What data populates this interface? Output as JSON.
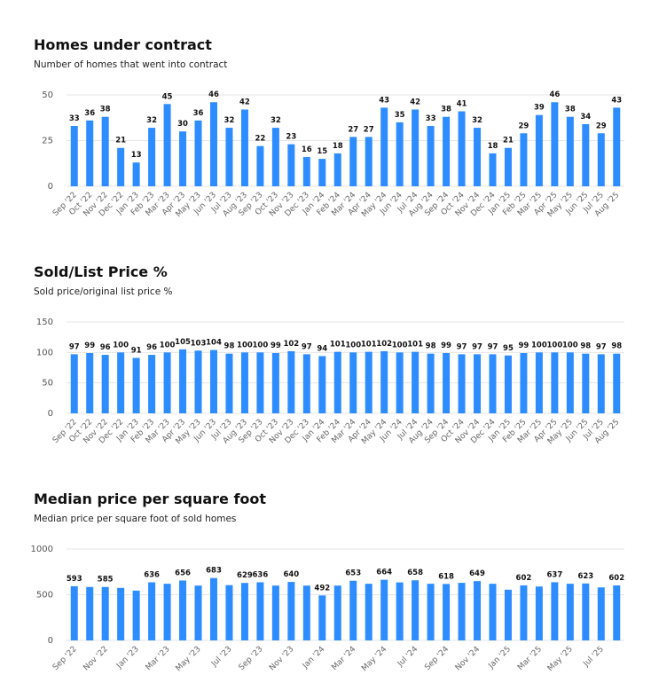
{
  "chart_data": [
    {
      "type": "bar",
      "title": "Homes under contract",
      "subtitle": "Number of homes that went into contract",
      "categories": [
        "Sep '22",
        "Oct '22",
        "Nov '22",
        "Dec '22",
        "Jan '23",
        "Feb '23",
        "Mar '23",
        "Apr '23",
        "May '23",
        "Jun '23",
        "Jul '23",
        "Aug '23",
        "Sep '23",
        "Oct '23",
        "Nov '23",
        "Dec '23",
        "Jan '24",
        "Feb '24",
        "Mar '24",
        "Apr '24",
        "May '24",
        "Jun '24",
        "Jul '24",
        "Aug '24",
        "Sep '24",
        "Oct '24",
        "Nov '24",
        "Dec '24",
        "Jan '25",
        "Feb '25",
        "Mar '25",
        "Apr '25",
        "May '25",
        "Jun '25",
        "Jul '25",
        "Aug '25"
      ],
      "values": [
        33,
        36,
        38,
        21,
        13,
        32,
        45,
        30,
        36,
        46,
        32,
        42,
        22,
        32,
        23,
        16,
        15,
        18,
        27,
        27,
        43,
        35,
        42,
        33,
        38,
        41,
        32,
        18,
        21,
        29,
        39,
        46,
        38,
        34,
        29,
        43
      ],
      "color": "#2d8cff",
      "ylim": [
        0,
        50
      ],
      "yticks": [
        0,
        25,
        50
      ],
      "grid": true
    },
    {
      "type": "bar",
      "title": "Sold/List Price %",
      "subtitle": "Sold price/original list price %",
      "categories": [
        "Sep '22",
        "Oct '22",
        "Nov '22",
        "Dec '22",
        "Jan '23",
        "Feb '23",
        "Mar '23",
        "Apr '23",
        "May '23",
        "Jun '23",
        "Jul '23",
        "Aug '23",
        "Sep '23",
        "Oct '23",
        "Nov '23",
        "Dec '23",
        "Jan '24",
        "Feb '24",
        "Mar '24",
        "Apr '24",
        "May '24",
        "Jun '24",
        "Jul '24",
        "Aug '24",
        "Sep '24",
        "Oct '24",
        "Nov '24",
        "Dec '24",
        "Jan '25",
        "Feb '25",
        "Mar '25",
        "Apr '25",
        "May '25",
        "Jun '25",
        "Jul '25",
        "Aug '25"
      ],
      "values": [
        97,
        99,
        96,
        100,
        91,
        96,
        100,
        105,
        103,
        104,
        98,
        100,
        100,
        99,
        102,
        97,
        94,
        101,
        100,
        101,
        102,
        100,
        101,
        98,
        99,
        97,
        97,
        97,
        95,
        99,
        100,
        100,
        100,
        98,
        97,
        98
      ],
      "color": "#2d8cff",
      "ylim": [
        0,
        150
      ],
      "yticks": [
        0,
        50,
        100,
        150
      ],
      "grid": true
    },
    {
      "type": "bar",
      "title": "Median price per square foot",
      "subtitle": "Median price per square foot of sold homes",
      "categories": [
        "Sep '22",
        null,
        "Nov '22",
        null,
        "Jan '23",
        null,
        "Mar '23",
        null,
        "May '23",
        null,
        "Jul '23",
        null,
        "Sep '23",
        null,
        "Nov '23",
        null,
        "Jan '24",
        null,
        "Mar '24",
        null,
        "May '24",
        null,
        "Jul '24",
        null,
        "Sep '24",
        null,
        "Nov '24",
        null,
        "Jan '25",
        null,
        "Mar '25",
        null,
        "May '25",
        null,
        "Jul '25",
        null
      ],
      "values": [
        593,
        585,
        585,
        575,
        545,
        636,
        620,
        656,
        600,
        683,
        605,
        629,
        636,
        600,
        640,
        600,
        492,
        600,
        653,
        620,
        664,
        635,
        658,
        620,
        618,
        630,
        649,
        620,
        555,
        602,
        590,
        637,
        620,
        623,
        580,
        602
      ],
      "value_labels": [
        "593",
        null,
        "585",
        null,
        null,
        "636",
        null,
        "656",
        null,
        "683",
        null,
        "629",
        "636",
        null,
        "640",
        null,
        "492",
        null,
        "653",
        null,
        "664",
        null,
        "658",
        null,
        "618",
        null,
        "649",
        null,
        null,
        "602",
        null,
        "637",
        null,
        "623",
        null,
        "602"
      ],
      "color": "#2d8cff",
      "ylim": [
        0,
        1000
      ],
      "yticks": [
        0,
        500,
        {
          "value": 1000,
          "label": "1000"
        }
      ],
      "grid": true
    }
  ]
}
